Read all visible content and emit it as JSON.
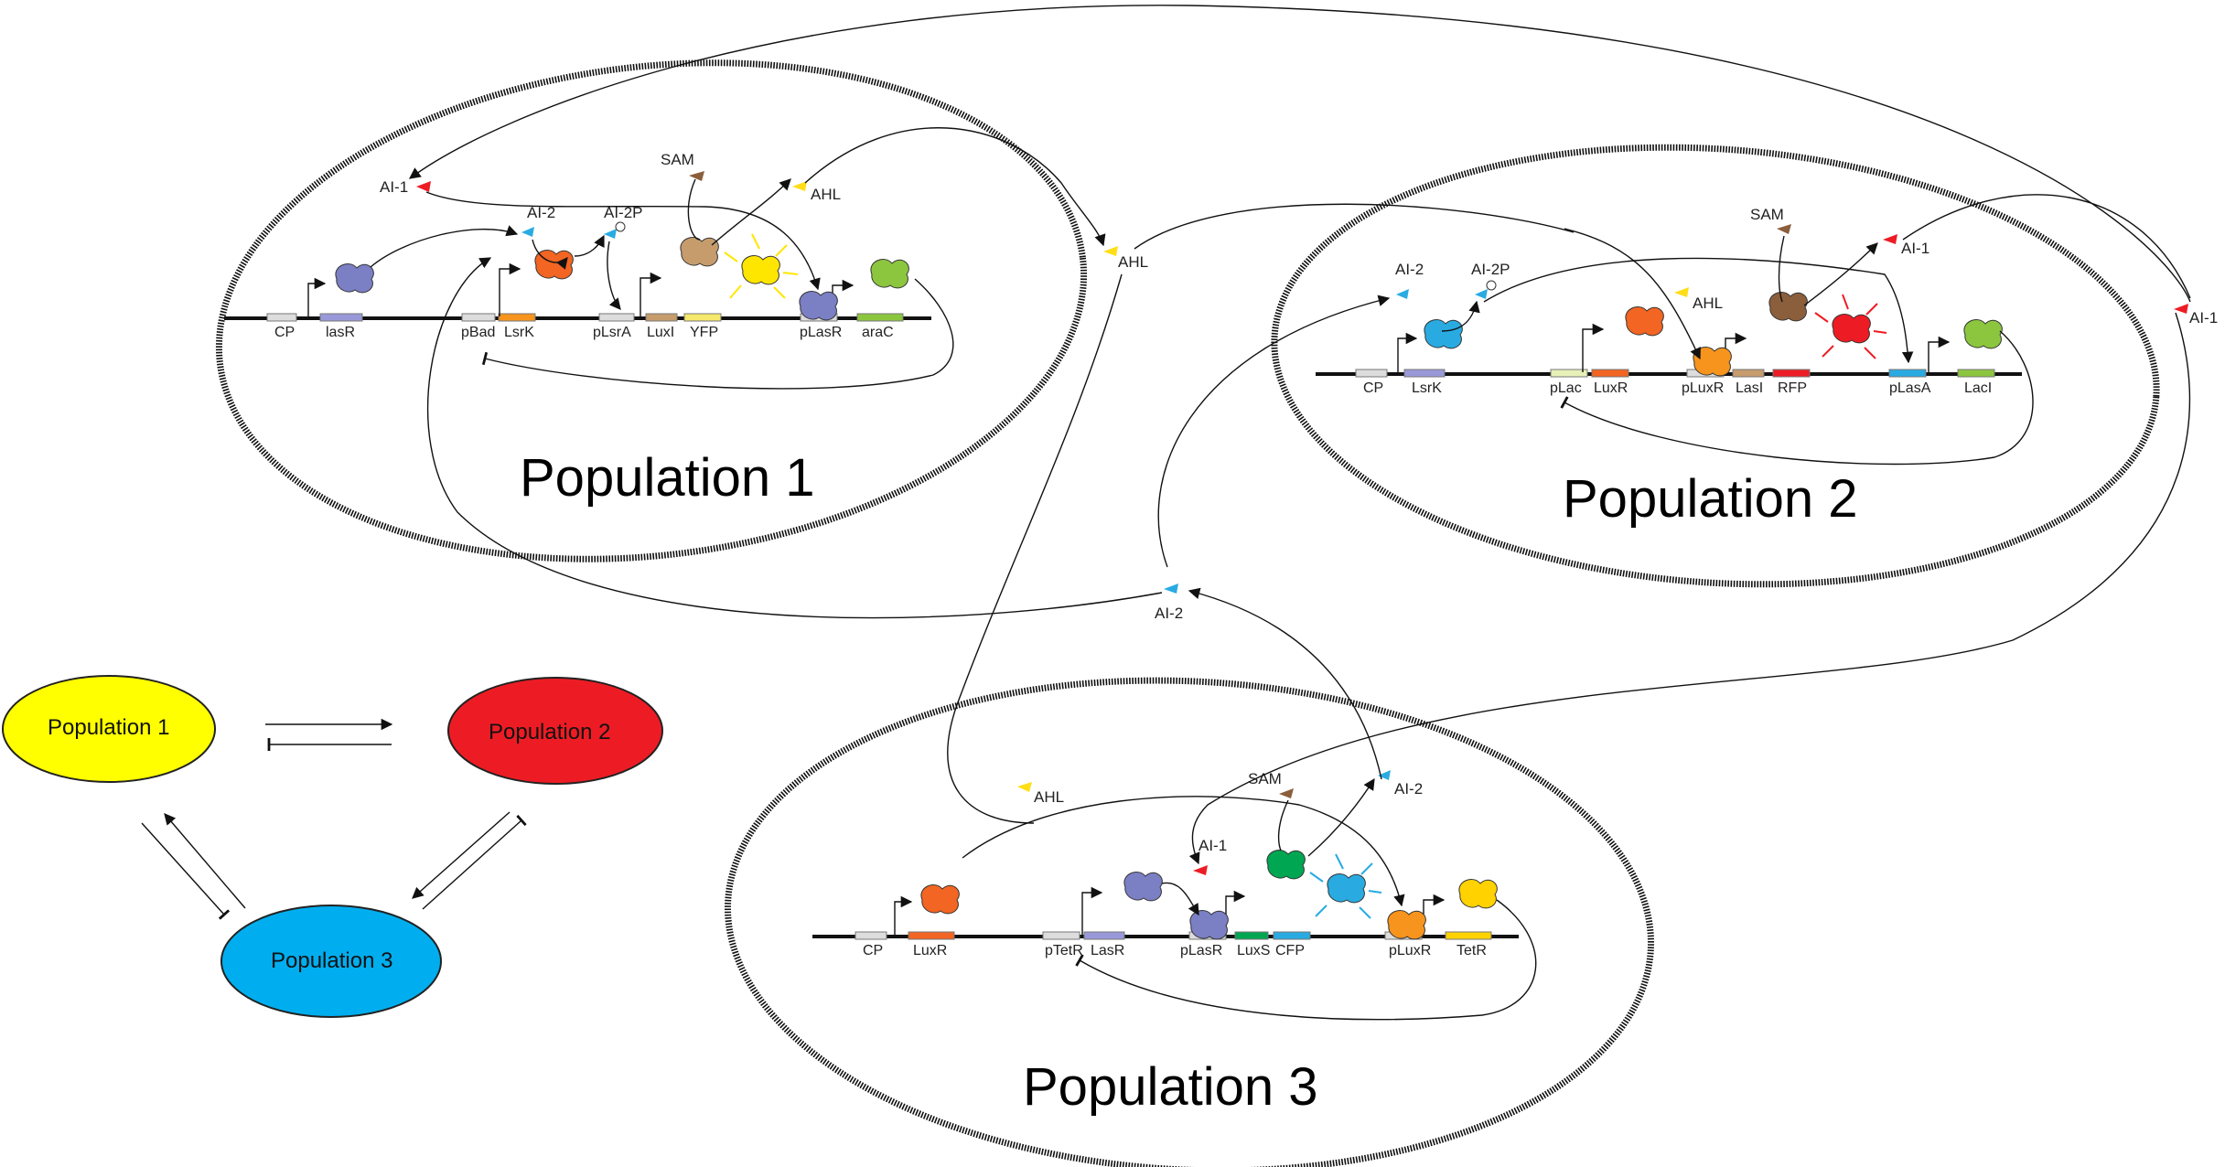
{
  "colors": {
    "population_1_oval": "#ffff00",
    "population_2_oval": "#ed1c24",
    "population_3_oval": "#00aeef",
    "lasR_protein": "#7b7fc4",
    "lsrK_protein": "#29abe2",
    "luxR_protein": "#f26522",
    "luxS_protein": "#00a651",
    "lasI_protein": "#c69c6d",
    "yfp": "#ffe600",
    "rfp": "#ed1c24",
    "cfp": "#29abe2",
    "araC_protein": "#8cc63f",
    "tetR_protein": "#ffd200",
    "ahl_signal": "#ffde17",
    "ai1_signal": "#ed1c24",
    "ai2_signal": "#29abe2",
    "sam_signal": "#8b5e3c"
  },
  "population_1": {
    "title": "Population 1",
    "genes": [
      "CP",
      "lasR",
      "pBad",
      "LsrK",
      "pLsrA",
      "LuxI",
      "YFP",
      "pLasR",
      "araC"
    ],
    "signals": {
      "ai1": "AI-1",
      "ai2": "AI-2",
      "ai2p": "AI-2P",
      "sam": "SAM",
      "ahl": "AHL"
    }
  },
  "population_2": {
    "title": "Population 2",
    "genes": [
      "CP",
      "LsrK",
      "pLac",
      "LuxR",
      "pLuxR",
      "LasI",
      "RFP",
      "pLasA",
      "LacI"
    ],
    "signals": {
      "ai2": "AI-2",
      "ai2p": "AI-2P",
      "ahl": "AHL",
      "sam": "SAM",
      "ai1": "AI-1"
    }
  },
  "population_3": {
    "title": "Population 3",
    "genes": [
      "CP",
      "LuxR",
      "pTetR",
      "LasR",
      "pLasR",
      "LuxS",
      "CFP",
      "pLuxR",
      "TetR"
    ],
    "signals": {
      "ahl": "AHL",
      "sam": "SAM",
      "ai1": "AI-1",
      "ai2": "AI-2"
    }
  },
  "external_signals": {
    "ahl": "AHL",
    "ai1": "AI-1",
    "ai2": "AI-2"
  },
  "summary": {
    "population_1": "Population 1",
    "population_2": "Population 2",
    "population_3": "Population 3"
  }
}
